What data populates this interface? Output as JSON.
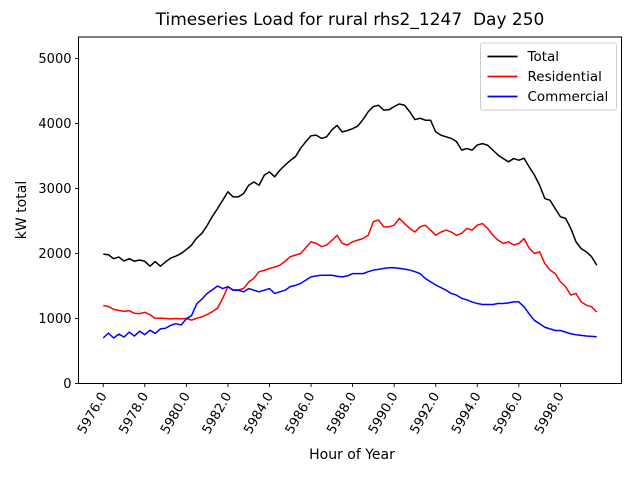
{
  "figure": {
    "background": "#ffffff"
  },
  "chart_data": {
    "type": "line",
    "title": "Timeseries Load for rural rhs2_1247  Day 250",
    "xlabel": "Hour of Year",
    "ylabel": "kW total",
    "xlim": [
      5974.81,
      6000.94
    ],
    "ylim": [
      0,
      5330
    ],
    "grid": false,
    "xticks": [
      5976,
      5978,
      5980,
      5982,
      5984,
      5986,
      5988,
      5990,
      5992,
      5994,
      5996,
      5998
    ],
    "xtick_labels": [
      "5976.0",
      "5978.0",
      "5980.0",
      "5982.0",
      "5984.0",
      "5986.0",
      "5988.0",
      "5990.0",
      "5992.0",
      "5994.0",
      "5996.0",
      "5998.0"
    ],
    "xtick_rotation_deg": 60,
    "yticks": [
      0,
      1000,
      2000,
      3000,
      4000,
      5000
    ],
    "ytick_labels": [
      "0",
      "1000",
      "2000",
      "3000",
      "4000",
      "5000"
    ],
    "x_start": 5976.0,
    "x_step": 0.25,
    "x_end": 5999.75,
    "legend": {
      "position": "upper right",
      "border_color": "#cccccc",
      "entries": [
        {
          "label": "Total",
          "color": "#000000"
        },
        {
          "label": "Residential",
          "color": "#ff0000"
        },
        {
          "label": "Commercial",
          "color": "#0000ff"
        }
      ]
    },
    "series": [
      {
        "name": "Total",
        "color": "#000000",
        "values": [
          1990,
          1980,
          1920,
          1945,
          1885,
          1920,
          1880,
          1900,
          1880,
          1805,
          1875,
          1805,
          1870,
          1930,
          1960,
          2000,
          2060,
          2130,
          2240,
          2310,
          2430,
          2570,
          2690,
          2820,
          2950,
          2870,
          2870,
          2920,
          3050,
          3100,
          3050,
          3205,
          3255,
          3180,
          3280,
          3360,
          3430,
          3490,
          3620,
          3720,
          3810,
          3820,
          3770,
          3795,
          3900,
          3970,
          3870,
          3890,
          3920,
          3960,
          4060,
          4180,
          4260,
          4280,
          4205,
          4210,
          4260,
          4300,
          4280,
          4180,
          4060,
          4080,
          4050,
          4050,
          3870,
          3820,
          3795,
          3770,
          3720,
          3590,
          3615,
          3590,
          3670,
          3690,
          3665,
          3590,
          3515,
          3460,
          3410,
          3460,
          3435,
          3465,
          3330,
          3205,
          3050,
          2845,
          2820,
          2690,
          2565,
          2540,
          2385,
          2180,
          2075,
          2025,
          1950,
          1820
        ]
      },
      {
        "name": "Residential",
        "color": "#ff0000",
        "values": [
          1200,
          1185,
          1140,
          1125,
          1110,
          1120,
          1080,
          1075,
          1095,
          1060,
          1000,
          1005,
          1000,
          995,
          1000,
          995,
          1000,
          975,
          1005,
          1025,
          1060,
          1105,
          1160,
          1310,
          1490,
          1440,
          1440,
          1460,
          1560,
          1620,
          1720,
          1740,
          1770,
          1790,
          1820,
          1880,
          1950,
          1975,
          2000,
          2090,
          2180,
          2155,
          2105,
          2130,
          2200,
          2280,
          2155,
          2130,
          2180,
          2205,
          2230,
          2280,
          2490,
          2515,
          2410,
          2410,
          2435,
          2540,
          2460,
          2385,
          2330,
          2410,
          2435,
          2360,
          2280,
          2330,
          2360,
          2330,
          2280,
          2310,
          2385,
          2360,
          2435,
          2460,
          2385,
          2280,
          2205,
          2155,
          2180,
          2130,
          2155,
          2230,
          2080,
          2000,
          2025,
          1845,
          1745,
          1690,
          1565,
          1490,
          1360,
          1385,
          1255,
          1205,
          1180,
          1100
        ]
      },
      {
        "name": "Commercial",
        "color": "#0000ff",
        "values": [
          700,
          775,
          700,
          760,
          715,
          790,
          730,
          805,
          750,
          820,
          770,
          840,
          850,
          895,
          920,
          900,
          995,
          1045,
          1225,
          1300,
          1385,
          1440,
          1500,
          1460,
          1490,
          1435,
          1435,
          1410,
          1460,
          1435,
          1410,
          1435,
          1460,
          1385,
          1410,
          1435,
          1490,
          1510,
          1540,
          1590,
          1640,
          1655,
          1665,
          1665,
          1665,
          1650,
          1640,
          1655,
          1690,
          1690,
          1690,
          1720,
          1745,
          1755,
          1770,
          1780,
          1780,
          1770,
          1760,
          1745,
          1720,
          1690,
          1615,
          1565,
          1515,
          1475,
          1435,
          1385,
          1360,
          1310,
          1285,
          1255,
          1230,
          1215,
          1215,
          1215,
          1230,
          1230,
          1240,
          1255,
          1255,
          1180,
          1070,
          970,
          920,
          865,
          840,
          815,
          815,
          790,
          765,
          750,
          740,
          730,
          725,
          720
        ]
      }
    ]
  }
}
